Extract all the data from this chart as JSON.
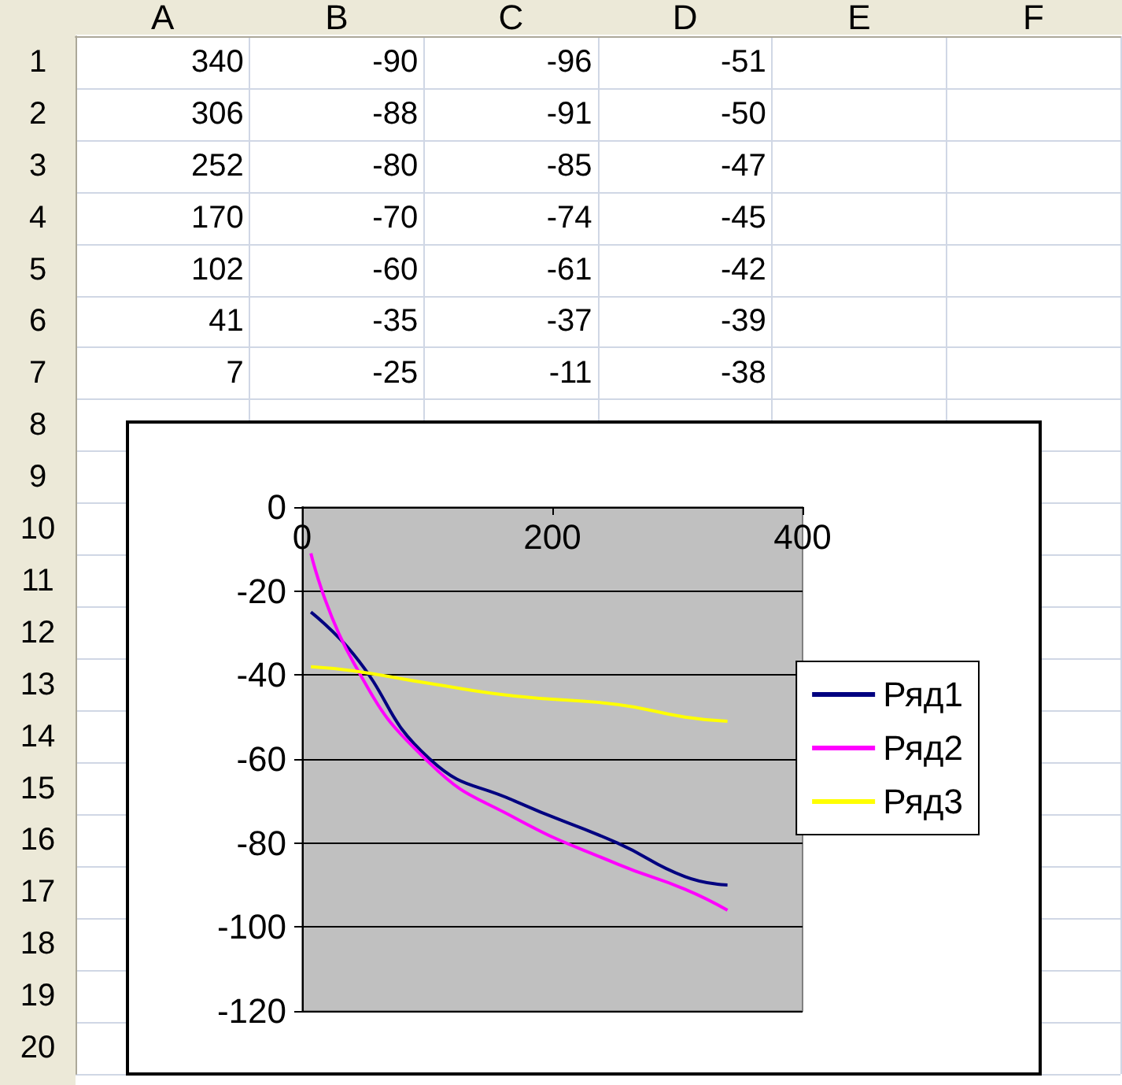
{
  "chart_data": [
    {
      "type": "heatmap",
      "data_labels": true,
      "categories": [
        "A",
        "B",
        "C",
        "D",
        "E",
        "F"
      ],
      "y_categories": [
        "1",
        "2",
        "3",
        "4",
        "5",
        "6",
        "7",
        "8",
        "9",
        "10",
        "11",
        "12",
        "13",
        "14",
        "15",
        "16",
        "17",
        "18",
        "19",
        "20"
      ],
      "cells": [
        [
          340,
          -90,
          -96,
          -51,
          null,
          null
        ],
        [
          306,
          -88,
          -91,
          -50,
          null,
          null
        ],
        [
          252,
          -80,
          -85,
          -47,
          null,
          null
        ],
        [
          170,
          -70,
          -74,
          -45,
          null,
          null
        ],
        [
          102,
          -60,
          -61,
          -42,
          null,
          null
        ],
        [
          41,
          -35,
          -37,
          -39,
          null,
          null
        ],
        [
          7,
          -25,
          -11,
          -38,
          null,
          null
        ],
        [
          null,
          null,
          null,
          null,
          null,
          null
        ],
        [
          null,
          null,
          null,
          null,
          null,
          null
        ],
        [
          null,
          null,
          null,
          null,
          null,
          null
        ],
        [
          null,
          null,
          null,
          null,
          null,
          null
        ],
        [
          null,
          null,
          null,
          null,
          null,
          null
        ],
        [
          null,
          null,
          null,
          null,
          null,
          null
        ],
        [
          null,
          null,
          null,
          null,
          null,
          null
        ],
        [
          null,
          null,
          null,
          null,
          null,
          null
        ],
        [
          null,
          null,
          null,
          null,
          null,
          null
        ],
        [
          null,
          null,
          null,
          null,
          null,
          null
        ],
        [
          null,
          null,
          null,
          null,
          null,
          null
        ],
        [
          null,
          null,
          null,
          null,
          null,
          null
        ],
        [
          null,
          null,
          null,
          null,
          null,
          null
        ]
      ]
    },
    {
      "type": "line",
      "x": [
        340,
        306,
        252,
        170,
        102,
        41,
        7
      ],
      "series": [
        {
          "name": "Ряд1",
          "color": "#000080",
          "values": [
            -90,
            -88,
            -80,
            -70,
            -60,
            -35,
            -25
          ]
        },
        {
          "name": "Ряд2",
          "color": "#ff00ff",
          "values": [
            -96,
            -91,
            -85,
            -74,
            -61,
            -37,
            -11
          ]
        },
        {
          "name": "Ряд3",
          "color": "#ffff00",
          "values": [
            -51,
            -50,
            -47,
            -45,
            -42,
            -39,
            -38
          ]
        }
      ],
      "xlim": [
        0,
        400
      ],
      "xticks": [
        0,
        200,
        400
      ],
      "ylim": [
        -120,
        0
      ],
      "yticks": [
        -120,
        -100,
        -80,
        -60,
        -40,
        -20,
        0
      ],
      "grid": "y",
      "legend": "right",
      "marker": "none",
      "line_style": "solid"
    }
  ]
}
